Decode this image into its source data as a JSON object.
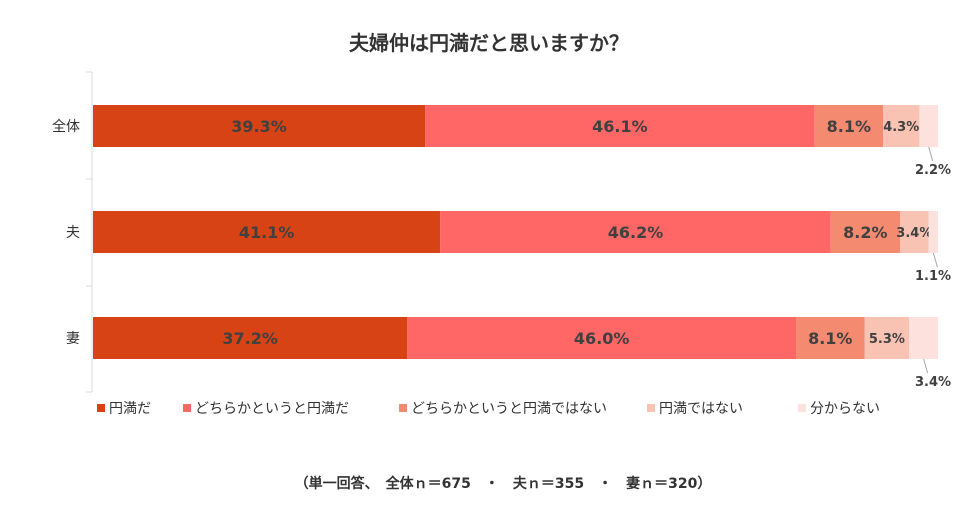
{
  "chart_data": {
    "type": "bar",
    "orientation": "horizontal",
    "stacked": true,
    "title": "夫婦仲は円満だと思いますか？",
    "categories": [
      "全体",
      "夫",
      "妻"
    ],
    "series": [
      {
        "name": "円満だ",
        "color": "#D84315",
        "values": [
          39.3,
          41.1,
          37.2
        ],
        "labels": [
          "39.3%",
          "41.1%",
          "37.2%"
        ]
      },
      {
        "name": "どちらかというと円満だ",
        "color": "#FF6666",
        "values": [
          46.1,
          46.2,
          46.0
        ],
        "labels": [
          "46.1%",
          "46.2%",
          "46.0%"
        ]
      },
      {
        "name": "どちらかというと円満ではない",
        "color": "#F48A70",
        "values": [
          8.1,
          8.2,
          8.1
        ],
        "labels": [
          "8.1%",
          "8.2%",
          "8.1%"
        ]
      },
      {
        "name": "円満ではない",
        "color": "#F9C3B4",
        "values": [
          4.3,
          3.4,
          5.3
        ],
        "labels": [
          "4.3%",
          "3.4%",
          "5.3%"
        ]
      },
      {
        "name": "分からない",
        "color": "#FDE1DD",
        "values": [
          2.2,
          1.1,
          3.4
        ],
        "labels": [
          "2.2%",
          "1.1%",
          "3.4%"
        ]
      }
    ],
    "xlim": [
      0,
      100
    ],
    "legend_position": "bottom",
    "grid": false,
    "footnote": "（単一回答、　全体ｎ＝675　・　夫ｎ＝355　・　妻ｎ＝320）"
  }
}
